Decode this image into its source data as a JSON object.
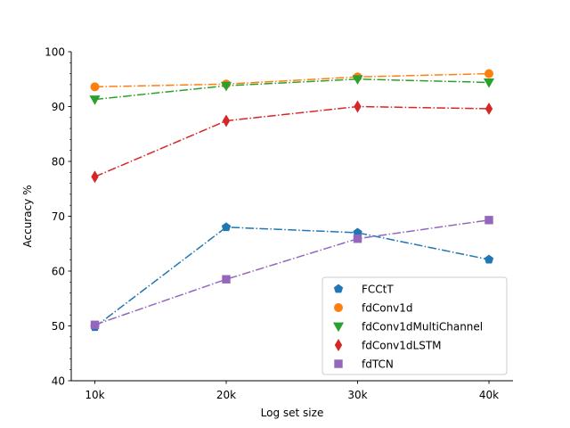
{
  "chart_data": {
    "type": "line",
    "title": "",
    "xlabel": "Log set size",
    "ylabel": "Accuracy %",
    "categories": [
      "10k",
      "20k",
      "30k",
      "40k"
    ],
    "ylim": [
      40,
      100
    ],
    "yticks": [
      40,
      50,
      60,
      70,
      80,
      90,
      100
    ],
    "y_minor_step": 2,
    "grid": false,
    "legend_position": "lower-right",
    "series": [
      {
        "name": "FCCtT",
        "values": [
          49.8,
          68.0,
          67.0,
          62.1
        ],
        "color": "#1f77b4",
        "marker": "pentagon",
        "linestyle": "dashdot"
      },
      {
        "name": "fdConv1d",
        "values": [
          93.6,
          94.1,
          95.4,
          96.0
        ],
        "color": "#ff7f0e",
        "marker": "circle",
        "linestyle": "dashdot"
      },
      {
        "name": "fdConv1dMultiChannel",
        "values": [
          91.3,
          93.8,
          95.0,
          94.4
        ],
        "color": "#2ca02c",
        "marker": "triangle-down",
        "linestyle": "dashdot"
      },
      {
        "name": "fdConv1dLSTM",
        "values": [
          77.2,
          87.4,
          90.0,
          89.6
        ],
        "color": "#d62728",
        "marker": "thin-diamond",
        "linestyle": "dashdot"
      },
      {
        "name": "fdTCN",
        "values": [
          50.2,
          58.5,
          65.9,
          69.3
        ],
        "color": "#9467bd",
        "marker": "square",
        "linestyle": "dashdot"
      }
    ]
  }
}
